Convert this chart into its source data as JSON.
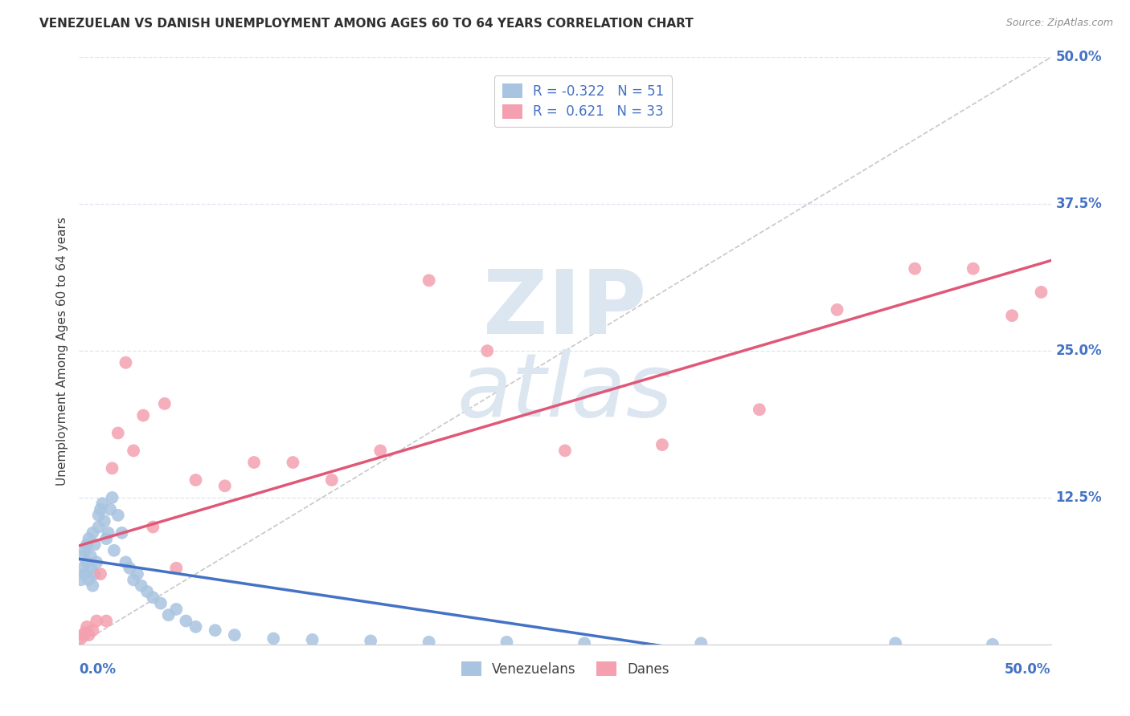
{
  "title": "VENEZUELAN VS DANISH UNEMPLOYMENT AMONG AGES 60 TO 64 YEARS CORRELATION CHART",
  "source": "Source: ZipAtlas.com",
  "ylabel": "Unemployment Among Ages 60 to 64 years",
  "ytick_labels": [
    "0.0%",
    "12.5%",
    "25.0%",
    "37.5%",
    "50.0%"
  ],
  "legend_label1": "R = -0.322   N = 51",
  "legend_label2": "R =  0.621   N = 33",
  "legend_bottom1": "Venezuelans",
  "legend_bottom2": "Danes",
  "color_venezuelan": "#a8c4e0",
  "color_danish": "#f4a0b0",
  "line_color_venezuelan": "#4472c4",
  "line_color_danish": "#e05878",
  "diagonal_color": "#c8c8c8",
  "background_color": "#ffffff",
  "grid_color": "#dde4f0",
  "watermark_color": "#dce6f0",
  "title_color": "#303030",
  "axis_label_color": "#4472c4",
  "venezuelan_x": [
    0.001,
    0.002,
    0.002,
    0.003,
    0.003,
    0.004,
    0.004,
    0.005,
    0.005,
    0.006,
    0.006,
    0.007,
    0.007,
    0.008,
    0.008,
    0.009,
    0.01,
    0.01,
    0.011,
    0.012,
    0.013,
    0.014,
    0.015,
    0.016,
    0.017,
    0.018,
    0.02,
    0.022,
    0.024,
    0.026,
    0.028,
    0.03,
    0.032,
    0.035,
    0.038,
    0.042,
    0.046,
    0.05,
    0.055,
    0.06,
    0.07,
    0.08,
    0.1,
    0.12,
    0.15,
    0.18,
    0.22,
    0.26,
    0.32,
    0.42,
    0.47
  ],
  "venezuelan_y": [
    0.055,
    0.065,
    0.075,
    0.06,
    0.08,
    0.07,
    0.085,
    0.055,
    0.09,
    0.065,
    0.075,
    0.05,
    0.095,
    0.06,
    0.085,
    0.07,
    0.1,
    0.11,
    0.115,
    0.12,
    0.105,
    0.09,
    0.095,
    0.115,
    0.125,
    0.08,
    0.11,
    0.095,
    0.07,
    0.065,
    0.055,
    0.06,
    0.05,
    0.045,
    0.04,
    0.035,
    0.025,
    0.03,
    0.02,
    0.015,
    0.012,
    0.008,
    0.005,
    0.004,
    0.003,
    0.002,
    0.002,
    0.001,
    0.001,
    0.001,
    0.0
  ],
  "danish_x": [
    0.001,
    0.002,
    0.003,
    0.004,
    0.005,
    0.007,
    0.009,
    0.011,
    0.014,
    0.017,
    0.02,
    0.024,
    0.028,
    0.033,
    0.038,
    0.044,
    0.05,
    0.06,
    0.075,
    0.09,
    0.11,
    0.13,
    0.155,
    0.18,
    0.21,
    0.25,
    0.3,
    0.35,
    0.39,
    0.43,
    0.46,
    0.48,
    0.495
  ],
  "danish_y": [
    0.005,
    0.008,
    0.01,
    0.015,
    0.008,
    0.012,
    0.02,
    0.06,
    0.02,
    0.15,
    0.18,
    0.24,
    0.165,
    0.195,
    0.1,
    0.205,
    0.065,
    0.14,
    0.135,
    0.155,
    0.155,
    0.14,
    0.165,
    0.31,
    0.25,
    0.165,
    0.17,
    0.2,
    0.285,
    0.32,
    0.32,
    0.28,
    0.3
  ],
  "xmin": 0.0,
  "xmax": 0.5,
  "ymin": 0.0,
  "ymax": 0.5
}
